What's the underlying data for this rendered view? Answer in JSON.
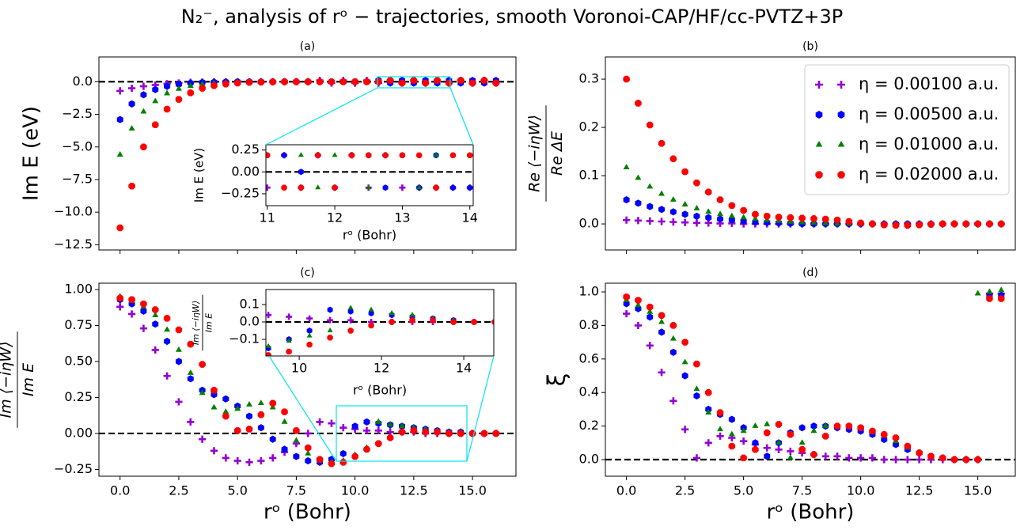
{
  "title": "N₂⁻, analysis of rᵒ − trajectories, smooth Voronoi-CAP/HF/cc-PVTZ+3P",
  "chart_data": [
    {
      "type": "scatter",
      "label": "(a)",
      "ylabel": "Im E (eV)",
      "x": [
        0,
        0.5,
        1,
        1.5,
        2,
        2.5,
        3,
        3.5,
        4,
        4.5,
        5,
        5.5,
        6,
        6.5,
        7,
        7.5,
        8,
        8.5,
        9,
        9.5,
        10,
        10.5,
        11,
        11.5,
        12,
        12.5,
        13,
        13.5,
        14,
        14.5,
        15,
        15.5,
        16
      ],
      "xlim": [
        -0.9,
        16.85
      ],
      "ylim": [
        -12.9,
        1.9
      ],
      "yticks": [
        {
          "value": 0,
          "label": "0.0"
        },
        {
          "value": -2.5,
          "label": "−2.5"
        },
        {
          "value": -5,
          "label": "−5.0"
        },
        {
          "value": -7.5,
          "label": "−7.5"
        },
        {
          "value": -10,
          "label": "−10.0"
        },
        {
          "value": -12.5,
          "label": "−12.5"
        }
      ],
      "hline": 0,
      "series": [
        {
          "color": "#9400d3",
          "marker": "plus",
          "values": [
            -0.7,
            -0.5,
            -0.35,
            -0.25,
            -0.15,
            -0.1,
            -0.05,
            -0.03,
            -0.02,
            -0.01,
            0,
            0,
            0,
            0,
            0,
            0,
            0,
            0.1,
            -0.1,
            0.1,
            -0.1,
            0.1,
            -0.1,
            0.1,
            -0.1,
            0.1,
            -0.1,
            0.1,
            -0.1,
            0.1,
            -0.1,
            0.1,
            -0.1
          ]
        },
        {
          "color": "#0000ff",
          "marker": "hexagon",
          "values": [
            -2.9,
            -1.7,
            -1.0,
            -0.6,
            -0.35,
            -0.2,
            -0.1,
            -0.05,
            -0.03,
            -0.01,
            0,
            0,
            0,
            0,
            0,
            0,
            0,
            0,
            0,
            0,
            0,
            0,
            0.1,
            -0.1,
            0.1,
            -0.1,
            0.1,
            -0.1,
            0.1,
            -0.1,
            0.1,
            -0.1,
            0.1
          ]
        },
        {
          "color": "#008000",
          "marker": "triangle",
          "values": [
            -5.6,
            -3.6,
            -2.3,
            -1.5,
            -0.9,
            -0.55,
            -0.33,
            -0.2,
            -0.12,
            -0.07,
            -0.04,
            -0.02,
            -0.01,
            0,
            0,
            0,
            0,
            0,
            0,
            0,
            0,
            0,
            0,
            0.1,
            -0.1,
            0.1,
            -0.1,
            0.1,
            -0.1,
            0.1,
            -0.1,
            0.1,
            -0.1
          ]
        },
        {
          "color": "#ff0000",
          "marker": "octagon",
          "values": [
            -11.2,
            -8.0,
            -5.0,
            -3.3,
            -2.1,
            -1.35,
            -0.85,
            -0.5,
            -0.3,
            -0.18,
            -0.1,
            -0.05,
            -0.03,
            -0.01,
            0,
            0,
            0,
            0,
            0,
            0,
            0,
            0,
            0,
            0.1,
            -0.1,
            0.1,
            -0.1,
            0.1,
            -0.1,
            0.1,
            -0.1,
            0.1,
            -0.1
          ]
        }
      ]
    },
    {
      "type": "scatter",
      "label": "(b)",
      "ylabel": [
        "Re ⟨−iηW⟩",
        "Re ΔE"
      ],
      "legend": "upper right",
      "x": [
        0,
        0.5,
        1,
        1.5,
        2,
        2.5,
        3,
        3.5,
        4,
        4.5,
        5,
        5.5,
        6,
        6.5,
        7,
        7.5,
        8,
        8.5,
        9,
        9.5,
        10,
        10.5,
        11,
        11.5,
        12,
        12.5,
        13,
        13.5,
        14,
        14.5,
        15,
        15.5,
        16
      ],
      "xlim": [
        -0.9,
        16.6
      ],
      "ylim": [
        -0.054,
        0.346
      ],
      "yticks": [
        {
          "value": 0,
          "label": "0.0"
        },
        0.1,
        0.2,
        0.3
      ],
      "series": [
        {
          "name": "η = 0.00100 a.u.",
          "color": "#9400d3",
          "marker": "plus",
          "values": [
            0.008,
            0.007,
            0.006,
            0.005,
            0.004,
            0.003,
            0.002,
            0.002,
            0.001,
            0.001,
            0,
            0,
            0,
            0,
            0,
            0,
            0,
            0,
            0,
            0,
            0,
            0,
            0,
            0,
            0,
            0,
            0,
            0,
            0,
            0,
            0,
            0,
            0
          ]
        },
        {
          "name": "η = 0.00500 a.u.",
          "color": "#0000ff",
          "marker": "hexagon",
          "values": [
            0.05,
            0.043,
            0.036,
            0.03,
            0.025,
            0.02,
            0.016,
            0.013,
            0.01,
            0.008,
            0.006,
            0.004,
            0.003,
            0.002,
            0.001,
            0,
            0,
            0,
            0,
            0,
            0,
            0,
            0,
            0,
            0,
            0,
            0,
            0,
            0,
            0,
            0,
            0,
            0
          ]
        },
        {
          "name": "η = 0.01000 a.u.",
          "color": "#008000",
          "marker": "triangle",
          "values": [
            0.117,
            0.095,
            0.077,
            0.062,
            0.05,
            0.04,
            0.032,
            0.025,
            0.02,
            0.016,
            0.013,
            0.01,
            0.008,
            0.006,
            0.004,
            0.003,
            0.002,
            0.001,
            0,
            0,
            0,
            0,
            0,
            0,
            0,
            0,
            0,
            0,
            0,
            0,
            0,
            0,
            0
          ]
        },
        {
          "name": "η = 0.02000 a.u.",
          "color": "#ff0000",
          "marker": "octagon",
          "values": [
            0.3,
            0.25,
            0.205,
            0.167,
            0.135,
            0.108,
            0.085,
            0.066,
            0.05,
            0.038,
            0.028,
            0.02,
            0.016,
            0.014,
            0.013,
            0.012,
            0.011,
            0.01,
            0.008,
            0.005,
            0.002,
            0,
            -0.002,
            -0.003,
            -0.003,
            -0.002,
            -0.001,
            0,
            0,
            0,
            0,
            0,
            0
          ]
        }
      ]
    },
    {
      "type": "scatter",
      "label": "(c)",
      "ylabel": [
        "Im ⟨−iηW⟩",
        "Im E"
      ],
      "xlabel": "rᵒ (Bohr)",
      "x": [
        0,
        0.5,
        1,
        1.5,
        2,
        2.5,
        3,
        3.5,
        4,
        4.5,
        5,
        5.5,
        6,
        6.5,
        7,
        7.5,
        8,
        8.5,
        9,
        9.5,
        10,
        10.5,
        11,
        11.5,
        12,
        12.5,
        13,
        13.5,
        14,
        14.5,
        15,
        15.5,
        16
      ],
      "xlim": [
        -0.9,
        16.85
      ],
      "ylim": [
        -0.297,
        1.044
      ],
      "xticks": [
        {
          "value": 0,
          "label": "0.0"
        },
        2.5,
        {
          "value": 5,
          "label": "5.0"
        },
        7.5,
        {
          "value": 10,
          "label": "10.0"
        },
        12.5,
        {
          "value": 15,
          "label": "15.0"
        }
      ],
      "yticks": [
        {
          "value": -0.25,
          "label": "−0.25"
        },
        {
          "value": 0,
          "label": "0.00"
        },
        0.25,
        {
          "value": 0.5,
          "label": "0.50"
        },
        0.75,
        {
          "value": 1,
          "label": "1.00"
        }
      ],
      "hline": 0,
      "series": [
        {
          "color": "#9400d3",
          "marker": "plus",
          "values": [
            0.88,
            0.83,
            0.73,
            0.58,
            0.4,
            0.22,
            0.08,
            -0.04,
            -0.12,
            -0.17,
            -0.19,
            -0.2,
            -0.19,
            -0.17,
            -0.13,
            -0.07,
            0,
            0.08,
            0.07,
            0.04,
            0.03,
            0.02,
            0.02,
            0.01,
            0.01,
            0.01,
            0,
            0,
            0,
            0,
            0,
            0,
            0
          ]
        },
        {
          "color": "#0000ff",
          "marker": "hexagon",
          "values": [
            0.93,
            0.9,
            0.85,
            0.76,
            0.64,
            0.5,
            0.38,
            0.3,
            0.27,
            0.24,
            0.19,
            0.12,
            0.04,
            -0.04,
            -0.11,
            -0.16,
            -0.19,
            -0.2,
            -0.18,
            -0.14,
            0.05,
            0.08,
            0.07,
            0.06,
            0.05,
            0.04,
            0.03,
            0.02,
            0.01,
            0.01,
            0,
            0,
            0
          ]
        },
        {
          "color": "#008000",
          "marker": "triangle",
          "values": [
            0.95,
            0.92,
            0.88,
            0.82,
            0.72,
            0.58,
            0.42,
            0.28,
            0.18,
            0.15,
            0.17,
            0.2,
            0.21,
            0.18,
            0.08,
            -0.05,
            -0.14,
            -0.19,
            -0.2,
            -0.19,
            -0.15,
            -0.1,
            0.08,
            0.06,
            0.05,
            0.04,
            0.03,
            0.02,
            0.01,
            0.01,
            0,
            0,
            0
          ]
        },
        {
          "color": "#ff0000",
          "marker": "octagon",
          "values": [
            0.94,
            0.93,
            0.9,
            0.86,
            0.8,
            0.72,
            0.62,
            0.48,
            0.3,
            0.12,
            0.02,
            0.03,
            0.13,
            0.21,
            0.15,
            0.02,
            -0.1,
            -0.18,
            -0.21,
            -0.2,
            -0.16,
            -0.11,
            -0.07,
            -0.03,
            0.01,
            0.02,
            0.01,
            0.01,
            0,
            0,
            0,
            0,
            0
          ]
        }
      ]
    },
    {
      "type": "scatter",
      "label": "(d)",
      "ylabel": "ξ",
      "xlabel": "rᵒ (Bohr)",
      "x": [
        0,
        0.5,
        1,
        1.5,
        2,
        2.5,
        3,
        3.5,
        4,
        4.5,
        5,
        5.5,
        6,
        6.5,
        7,
        7.5,
        8,
        8.5,
        9,
        9.5,
        10,
        10.5,
        11,
        11.5,
        12,
        12.5,
        13,
        13.5,
        14,
        14.5,
        15,
        15.5,
        16
      ],
      "xlim": [
        -0.9,
        16.6
      ],
      "ylim": [
        -0.099,
        1.052
      ],
      "xticks": [
        {
          "value": 0,
          "label": "0.0"
        },
        2.5,
        {
          "value": 5,
          "label": "5.0"
        },
        7.5,
        {
          "value": 10,
          "label": "10.0"
        },
        12.5,
        {
          "value": 15,
          "label": "15.0"
        }
      ],
      "yticks": [
        {
          "value": 0,
          "label": "0.0"
        },
        0.2,
        0.4,
        0.6,
        0.8,
        {
          "value": 1,
          "label": "1.0"
        }
      ],
      "hline": 0,
      "series": [
        {
          "color": "#9400d3",
          "marker": "plus",
          "values": [
            0.87,
            0.8,
            0.68,
            0.52,
            0.35,
            0.18,
            0.01,
            0.1,
            0.14,
            0.13,
            0.11,
            0.09,
            0.07,
            0.06,
            0.05,
            0.04,
            0.03,
            0.02,
            0.02,
            0.01,
            0.01,
            0.01,
            0,
            0,
            0,
            0,
            0,
            0,
            0,
            0,
            0,
            0.99,
            0.99
          ]
        },
        {
          "color": "#0000ff",
          "marker": "hexagon",
          "values": [
            0.93,
            0.9,
            0.85,
            0.76,
            0.64,
            0.5,
            0.38,
            0.3,
            0.27,
            0.24,
            0.19,
            0.1,
            0.02,
            0.1,
            0.16,
            0.19,
            0.2,
            0.2,
            0.19,
            0.18,
            0.17,
            0.15,
            0.12,
            0.09,
            0.06,
            0.04,
            0.02,
            0.01,
            0,
            0,
            0,
            0.98,
            0.98
          ]
        },
        {
          "color": "#008000",
          "marker": "triangle",
          "values": [
            0.95,
            0.92,
            0.88,
            0.82,
            0.72,
            0.58,
            0.42,
            0.28,
            0.18,
            0.15,
            0.17,
            0.2,
            0.21,
            0.1,
            0.01,
            0.1,
            0.17,
            0.2,
            0.2,
            0.2,
            0.19,
            0.17,
            0.14,
            0.11,
            0.07,
            0.04,
            0.02,
            0.01,
            0,
            0,
            0.99,
            1.0,
            1.01
          ]
        },
        {
          "color": "#ff0000",
          "marker": "octagon",
          "values": [
            0.97,
            0.95,
            0.91,
            0.86,
            0.8,
            0.7,
            0.57,
            0.4,
            0.28,
            0.08,
            0.01,
            0.06,
            0.16,
            0.21,
            0.15,
            0.06,
            0.03,
            0.14,
            0.2,
            0.2,
            0.19,
            0.17,
            0.15,
            0.13,
            0.08,
            0.04,
            0.02,
            0.01,
            0,
            0,
            0,
            0.96,
            0.96
          ]
        }
      ]
    },
    {
      "type": "scatter",
      "ylabel": "Im E (eV)",
      "xlabel": "rᵒ (Bohr)",
      "x": [
        11,
        11.25,
        11.5,
        11.75,
        12,
        12.25,
        12.5,
        12.75,
        13,
        13.25,
        13.5,
        13.75,
        14
      ],
      "xlim": [
        10.98,
        14.05
      ],
      "ylim": [
        -0.386,
        0.31
      ],
      "xticks": [
        11,
        12,
        13,
        14
      ],
      "yticks": [
        0.25,
        {
          "value": 0,
          "label": "0.00"
        },
        {
          "value": -0.25,
          "label": "−0.25"
        }
      ],
      "hline": 0,
      "series": [
        {
          "color": "#9400d3",
          "marker": "plus",
          "values": [
            -0.18,
            0.19,
            -0.18,
            0.19,
            -0.18,
            0.19,
            -0.18,
            0.19,
            -0.18,
            -0.18,
            -0.18,
            -0.18,
            -0.18
          ]
        },
        {
          "color": "#0000ff",
          "marker": "hexagon",
          "values": [
            0.19,
            0.19,
            0,
            0.19,
            -0.18,
            0.19,
            0.19,
            -0.18,
            0.19,
            -0.18,
            0.19,
            -0.18,
            -0.18
          ]
        },
        {
          "color": "#008000",
          "marker": "triangle",
          "values": [
            0.19,
            -0.18,
            0.19,
            -0.18,
            0.19,
            0.19,
            -0.18,
            0.19,
            0.19,
            -0.18,
            0.19,
            0.19,
            0.19
          ]
        },
        {
          "color": "#ff0000",
          "marker": "octagon",
          "values": [
            0.19,
            -0.18,
            -0.18,
            0.19,
            -0.18,
            0.19,
            0.19,
            0.19,
            0.19,
            0.19,
            -0.18,
            0.19,
            0.19
          ]
        }
      ]
    },
    {
      "type": "scatter",
      "ylabel": [
        "Im ⟨−iηW⟩",
        "Im E"
      ],
      "xlabel": "rᵒ (Bohr)",
      "x": [
        9.25,
        9.75,
        10.25,
        10.75,
        11.25,
        11.75,
        12.25,
        12.75,
        13.25,
        13.75,
        14.25,
        14.75
      ],
      "xlim": [
        9.19,
        14.73
      ],
      "ylim": [
        -0.195,
        0.186
      ],
      "xticks": [
        10,
        12,
        14
      ],
      "yticks": [
        0.1,
        {
          "value": 0,
          "label": "0.0"
        },
        {
          "value": -0.1,
          "label": "−0.1"
        }
      ],
      "hline": 0,
      "series": [
        {
          "color": "#9400d3",
          "marker": "plus",
          "values": [
            0.04,
            0.03,
            0.02,
            0.01,
            0.01,
            0,
            0,
            0,
            0,
            0,
            0,
            0
          ]
        },
        {
          "color": "#0000ff",
          "marker": "hexagon",
          "values": [
            -0.15,
            -0.1,
            -0.05,
            0.07,
            0.06,
            0.05,
            0.04,
            0.03,
            0.02,
            0.01,
            0,
            0
          ]
        },
        {
          "color": "#008000",
          "marker": "triangle",
          "values": [
            -0.14,
            -0.11,
            -0.08,
            -0.05,
            0.08,
            0.07,
            0.05,
            0.04,
            0.02,
            0.01,
            0,
            0
          ]
        },
        {
          "color": "#ff0000",
          "marker": "octagon",
          "values": [
            -0.19,
            -0.17,
            -0.13,
            -0.09,
            -0.05,
            -0.02,
            0,
            0.01,
            0.01,
            0,
            0,
            0
          ]
        }
      ]
    }
  ]
}
